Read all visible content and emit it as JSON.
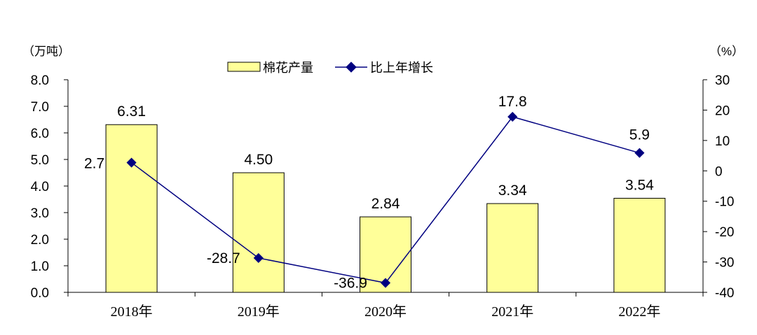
{
  "chart_data": {
    "type": "bar",
    "categories": [
      "2018年",
      "2019年",
      "2020年",
      "2021年",
      "2022年"
    ],
    "series": [
      {
        "name": "棉花产量",
        "type": "bar",
        "axis": "left",
        "values": [
          6.31,
          4.5,
          2.84,
          3.34,
          3.54
        ],
        "labels": [
          "6.31",
          "4.50",
          "2.84",
          "3.34",
          "3.54"
        ],
        "color": "#FFFF99",
        "stroke": "#000000"
      },
      {
        "name": "比上年增长",
        "type": "line",
        "axis": "right",
        "values": [
          2.7,
          -28.7,
          -36.9,
          17.8,
          5.9
        ],
        "labels": [
          "2.7",
          "-28.7",
          "-36.9",
          "17.8",
          "5.9"
        ],
        "color": "#000080"
      }
    ],
    "left_axis": {
      "unit": "（万吨）",
      "ylim": [
        0,
        8
      ],
      "ticks": [
        "0.0",
        "1.0",
        "2.0",
        "3.0",
        "4.0",
        "5.0",
        "6.0",
        "7.0",
        "8.0"
      ]
    },
    "right_axis": {
      "unit": "（%）",
      "ylim": [
        -40,
        30
      ],
      "ticks": [
        "-40",
        "-30",
        "-20",
        "-10",
        "0",
        "10",
        "20",
        "30"
      ]
    },
    "legend_position": "top-center",
    "grid": false
  }
}
